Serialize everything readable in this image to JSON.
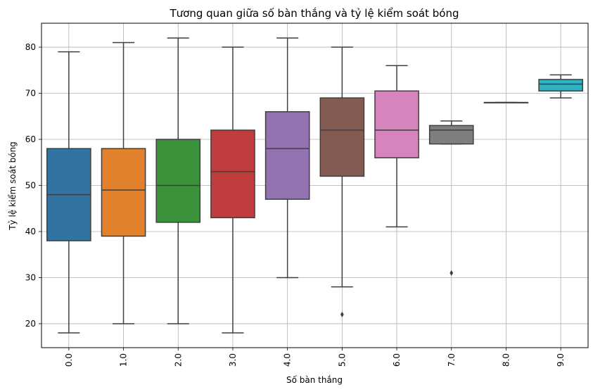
{
  "chart_data": {
    "type": "box",
    "title": "Tương quan giữa số bàn thắng và tỷ lệ kiểm soát bóng",
    "xlabel": "Số bàn thắng",
    "ylabel": "Tỷ lệ kiểm soát bóng",
    "ylim": [
      14.8,
      85.2
    ],
    "yticks": [
      20,
      30,
      40,
      50,
      60,
      70,
      80
    ],
    "ytick_labels": [
      "20",
      "30",
      "40",
      "50",
      "60",
      "70",
      "80"
    ],
    "grid": true,
    "categories": [
      "0.0",
      "1.0",
      "2.0",
      "3.0",
      "4.0",
      "5.0",
      "6.0",
      "7.0",
      "8.0",
      "9.0"
    ],
    "colors": [
      "#3274a1",
      "#e1812c",
      "#3a923a",
      "#c03d3e",
      "#9372b2",
      "#845b53",
      "#d684bd",
      "#7f7f7f",
      "#a9aa35",
      "#2eb3c4"
    ],
    "boxes": [
      {
        "whisker_low": 18,
        "q1": 38,
        "median": 48,
        "q3": 58,
        "whisker_high": 79,
        "outliers": []
      },
      {
        "whisker_low": 20,
        "q1": 39,
        "median": 49,
        "q3": 58,
        "whisker_high": 81,
        "outliers": []
      },
      {
        "whisker_low": 20,
        "q1": 42,
        "median": 50,
        "q3": 60,
        "whisker_high": 82,
        "outliers": []
      },
      {
        "whisker_low": 18,
        "q1": 43,
        "median": 53,
        "q3": 62,
        "whisker_high": 80,
        "outliers": []
      },
      {
        "whisker_low": 30,
        "q1": 47,
        "median": 58,
        "q3": 66,
        "whisker_high": 82,
        "outliers": []
      },
      {
        "whisker_low": 28,
        "q1": 52,
        "median": 62,
        "q3": 69,
        "whisker_high": 80,
        "outliers": [
          22
        ]
      },
      {
        "whisker_low": 41,
        "q1": 56,
        "median": 62,
        "q3": 70.5,
        "whisker_high": 76,
        "outliers": []
      },
      {
        "whisker_low": 59,
        "q1": 59,
        "median": 62,
        "q3": 63,
        "whisker_high": 64,
        "outliers": [
          31
        ]
      },
      {
        "whisker_low": 68,
        "q1": 68,
        "median": 68,
        "q3": 68,
        "whisker_high": 68,
        "outliers": []
      },
      {
        "whisker_low": 69,
        "q1": 70.5,
        "median": 72,
        "q3": 73,
        "whisker_high": 74,
        "outliers": []
      }
    ]
  }
}
